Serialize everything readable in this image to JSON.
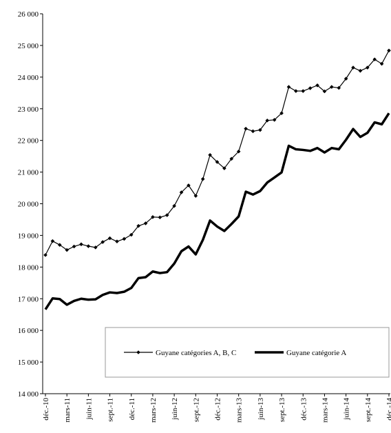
{
  "chart_data": {
    "type": "line",
    "categories": [
      "déc.-10",
      null,
      null,
      "mars-11",
      null,
      null,
      "juin-11",
      null,
      null,
      "sept.-11",
      null,
      null,
      "déc.-11",
      null,
      null,
      "mars-12",
      null,
      null,
      "juin-12",
      null,
      null,
      "sept.-12",
      null,
      null,
      "déc.-12",
      null,
      null,
      "mars-13",
      null,
      null,
      "juin-13",
      null,
      null,
      "sept.-13",
      null,
      null,
      "déc.-13",
      null,
      null,
      "mars-14",
      null,
      null,
      "juin-14",
      null,
      null,
      "sept.-14",
      null,
      null,
      "déc.-14"
    ],
    "series": [
      {
        "name": "Guyane catégories A, B, C",
        "color": "#000000",
        "marker": true,
        "values": [
          18380,
          18820,
          18700,
          18540,
          18650,
          18720,
          18660,
          18620,
          18790,
          18910,
          18810,
          18890,
          19020,
          19300,
          19380,
          19580,
          19570,
          19640,
          19930,
          20360,
          20580,
          20250,
          20780,
          21540,
          21320,
          21120,
          21420,
          21650,
          22370,
          22290,
          22330,
          22630,
          22650,
          22860,
          23690,
          23560,
          23560,
          23650,
          23740,
          23550,
          23690,
          23660,
          23950,
          24300,
          24200,
          24300,
          24560,
          24420,
          24840
        ]
      },
      {
        "name": "Guyane catégorie A",
        "color": "#000000",
        "marker": false,
        "values": [
          16660,
          17010,
          16990,
          16810,
          16930,
          17000,
          16970,
          16980,
          17120,
          17200,
          17180,
          17220,
          17340,
          17650,
          17680,
          17860,
          17810,
          17840,
          18110,
          18500,
          18650,
          18400,
          18860,
          19470,
          19280,
          19140,
          19360,
          19600,
          20380,
          20290,
          20400,
          20670,
          20830,
          20990,
          21830,
          21720,
          21700,
          21670,
          21760,
          21620,
          21760,
          21720,
          22020,
          22360,
          22110,
          22240,
          22570,
          22510,
          22860
        ]
      }
    ],
    "ylim": [
      14000,
      26000
    ],
    "yticks": [
      {
        "value": 14000,
        "label": "14 000"
      },
      {
        "value": 15000,
        "label": "15 000"
      },
      {
        "value": 16000,
        "label": "16 000"
      },
      {
        "value": 17000,
        "label": "17 000"
      },
      {
        "value": 18000,
        "label": "18 000"
      },
      {
        "value": 19000,
        "label": "19 000"
      },
      {
        "value": 20000,
        "label": "20 000"
      },
      {
        "value": 21000,
        "label": "21 000"
      },
      {
        "value": 22000,
        "label": "22 000"
      },
      {
        "value": 23000,
        "label": "23 000"
      },
      {
        "value": 24000,
        "label": "24 000"
      },
      {
        "value": 25000,
        "label": "25 000"
      },
      {
        "value": 26000,
        "label": "26 000"
      }
    ],
    "grid": false
  }
}
